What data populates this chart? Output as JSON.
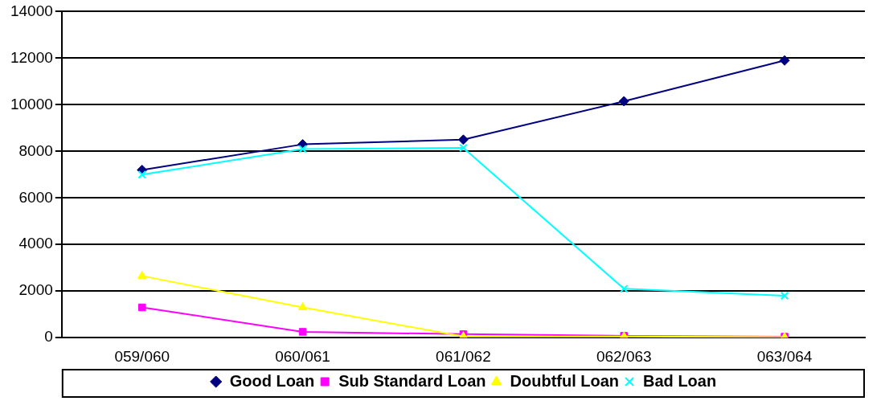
{
  "chart_data": {
    "type": "line",
    "categories": [
      "059/060",
      "060/061",
      "061/062",
      "062/063",
      "063/064"
    ],
    "series": [
      {
        "name": "Good Loan",
        "color": "#000080",
        "marker": "diamond",
        "values": [
          7200,
          8300,
          8500,
          10150,
          11900
        ]
      },
      {
        "name": "Sub Standard Loan",
        "color": "#ff00ff",
        "marker": "square",
        "values": [
          1300,
          250,
          150,
          80,
          40
        ]
      },
      {
        "name": "Doubtful Loan",
        "color": "#ffff00",
        "marker": "triangle",
        "values": [
          2650,
          1300,
          50,
          50,
          20
        ]
      },
      {
        "name": "Bad Loan",
        "color": "#00ffff",
        "marker": "cross",
        "values": [
          7000,
          8100,
          8150,
          2100,
          1800
        ]
      }
    ],
    "ylim": [
      0,
      14000
    ],
    "yticks": [
      0,
      2000,
      4000,
      6000,
      8000,
      10000,
      12000,
      14000
    ],
    "grid": "y",
    "legend": "bottom"
  }
}
